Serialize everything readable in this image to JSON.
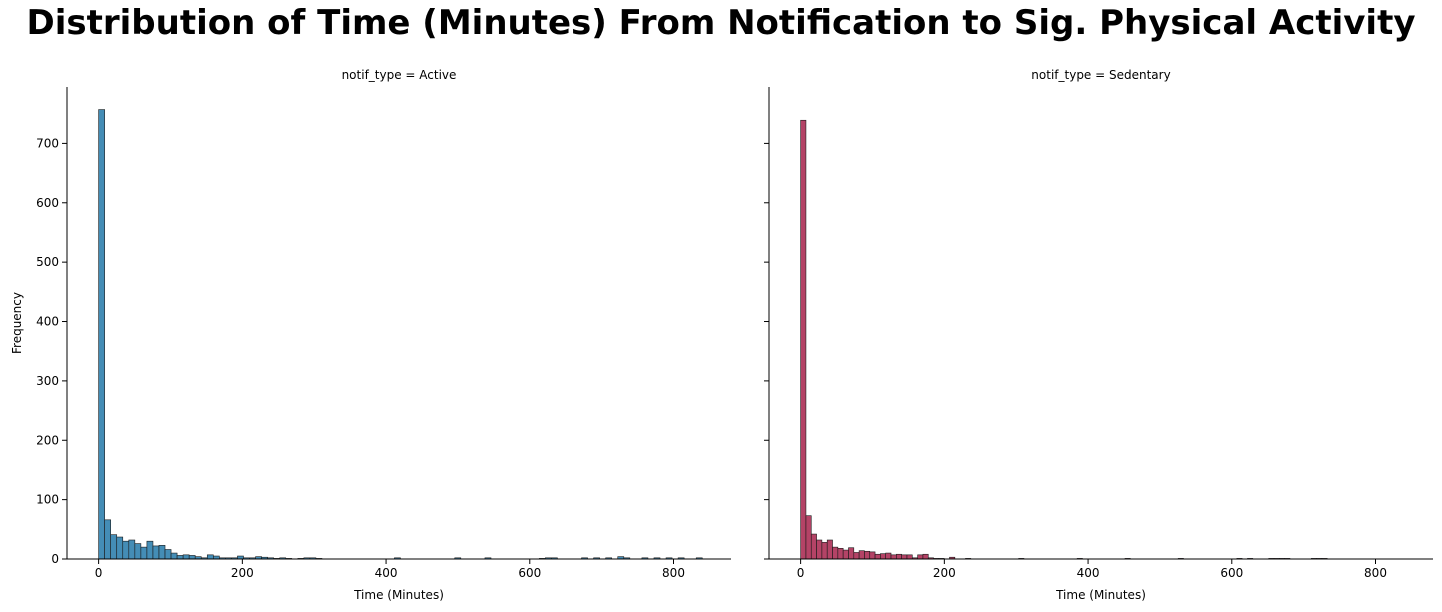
{
  "chart_data": {
    "title": "Distribution of Time (Minutes) From Notification to Sig. Physical Activity",
    "type": "histogram",
    "shared_y": true,
    "ylabel": "Frequency",
    "ylim": [
      0,
      795
    ],
    "yticks": [
      0,
      100,
      200,
      300,
      400,
      500,
      600,
      700
    ],
    "panels": [
      {
        "title": "notif_type = Active",
        "xlabel": "Time (Minutes)",
        "xlim": [
          -44,
          880
        ],
        "xticks": [
          0,
          200,
          400,
          600,
          800
        ],
        "color": "#3a87b2",
        "bin_width": 8.4,
        "bins": [
          [
            0,
            757
          ],
          [
            8.4,
            66
          ],
          [
            16.8,
            41
          ],
          [
            25.2,
            37
          ],
          [
            33.6,
            30
          ],
          [
            42,
            32
          ],
          [
            50.4,
            26
          ],
          [
            58.8,
            20
          ],
          [
            67.2,
            30
          ],
          [
            75.6,
            22
          ],
          [
            84,
            23
          ],
          [
            92.4,
            16
          ],
          [
            100.8,
            10
          ],
          [
            109.2,
            6
          ],
          [
            117.6,
            7
          ],
          [
            126,
            6
          ],
          [
            134.4,
            4
          ],
          [
            142.8,
            2
          ],
          [
            151.2,
            7
          ],
          [
            159.6,
            5
          ],
          [
            168,
            2
          ],
          [
            176.4,
            2
          ],
          [
            184.8,
            2
          ],
          [
            193.2,
            5
          ],
          [
            201.6,
            2
          ],
          [
            210,
            2
          ],
          [
            218.4,
            4
          ],
          [
            226.8,
            3
          ],
          [
            235.2,
            2
          ],
          [
            243.6,
            1
          ],
          [
            252,
            2
          ],
          [
            260.4,
            1
          ],
          [
            277.2,
            1
          ],
          [
            285.6,
            2
          ],
          [
            294,
            2
          ],
          [
            302.4,
            1
          ],
          [
            411.6,
            2
          ],
          [
            495.6,
            2
          ],
          [
            537.6,
            2
          ],
          [
            613.2,
            1
          ],
          [
            621.6,
            2
          ],
          [
            630,
            2
          ],
          [
            672,
            2
          ],
          [
            688.8,
            2
          ],
          [
            705.6,
            2
          ],
          [
            722.4,
            4
          ],
          [
            730.8,
            2
          ],
          [
            756,
            2
          ],
          [
            772.8,
            2
          ],
          [
            789.6,
            2
          ],
          [
            806.4,
            2
          ],
          [
            831.6,
            2
          ]
        ]
      },
      {
        "title": "notif_type = Sedentary",
        "xlabel": "Time (Minutes)",
        "xlim": [
          -44,
          880
        ],
        "xticks": [
          0,
          200,
          400,
          600,
          800
        ],
        "color": "#b0395e",
        "bin_width": 7.4,
        "bins": [
          [
            0,
            739
          ],
          [
            7.4,
            73
          ],
          [
            14.8,
            42
          ],
          [
            22.2,
            32
          ],
          [
            29.6,
            28
          ],
          [
            37,
            32
          ],
          [
            44.4,
            20
          ],
          [
            51.8,
            18
          ],
          [
            59.2,
            15
          ],
          [
            66.6,
            19
          ],
          [
            74,
            11
          ],
          [
            81.4,
            14
          ],
          [
            88.8,
            13
          ],
          [
            96.2,
            12
          ],
          [
            103.6,
            8
          ],
          [
            111,
            9
          ],
          [
            118.4,
            10
          ],
          [
            125.8,
            7
          ],
          [
            133.2,
            8
          ],
          [
            140.6,
            7
          ],
          [
            148,
            7
          ],
          [
            155.4,
            2
          ],
          [
            162.8,
            7
          ],
          [
            170.2,
            8
          ],
          [
            177.6,
            2
          ],
          [
            185,
            1
          ],
          [
            192.4,
            1
          ],
          [
            207.2,
            3
          ],
          [
            229.4,
            1
          ],
          [
            303.4,
            1
          ],
          [
            384.8,
            1
          ],
          [
            451.4,
            1
          ],
          [
            525.4,
            1
          ],
          [
            607,
            1
          ],
          [
            621.8,
            1
          ],
          [
            651.4,
            1
          ],
          [
            658.8,
            1
          ],
          [
            666.2,
            1
          ],
          [
            673.6,
            1
          ],
          [
            710.6,
            1
          ],
          [
            718,
            1
          ],
          [
            725.4,
            1
          ]
        ]
      }
    ]
  }
}
